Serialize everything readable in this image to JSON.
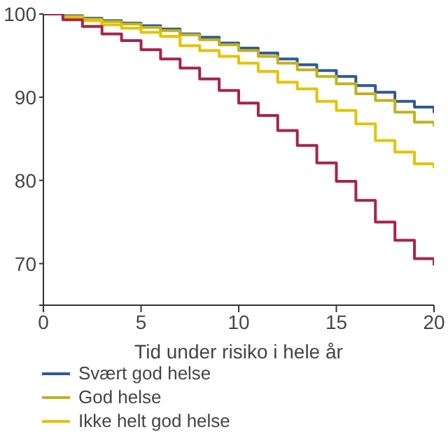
{
  "chart_data": {
    "type": "step",
    "xlabel": "Tid under risiko i hele år",
    "x": [
      0,
      1,
      2,
      3,
      4,
      5,
      6,
      7,
      8,
      9,
      10,
      11,
      12,
      13,
      14,
      15,
      16,
      17,
      18,
      19,
      20
    ],
    "series": [
      {
        "name": "Svært god helse",
        "color": "#2e5a94",
        "values": [
          100,
          99.8,
          99.5,
          99.2,
          98.9,
          98.6,
          98.2,
          97.6,
          97.2,
          96.5,
          95.9,
          95.3,
          94.6,
          93.9,
          93.2,
          92.5,
          91.4,
          90.6,
          89.5,
          88.8,
          88.1
        ]
      },
      {
        "name": "God helse",
        "color": "#c2b11e",
        "values": [
          100,
          99.7,
          99.4,
          99.1,
          98.8,
          98.4,
          98.0,
          97.5,
          96.9,
          96.3,
          95.6,
          94.9,
          94.1,
          93.3,
          92.5,
          91.6,
          90.4,
          89.6,
          88.2,
          87.0,
          86.5
        ]
      },
      {
        "name": "Ikke helt god helse",
        "color": "#e6c300",
        "values": [
          100,
          99.6,
          99.2,
          98.7,
          98.3,
          97.8,
          97.3,
          96.2,
          95.6,
          94.9,
          94.1,
          93.1,
          91.8,
          91.0,
          89.5,
          88.4,
          86.8,
          84.8,
          83.4,
          82.0,
          81.5
        ]
      },
      {
        "color": "#a8234a",
        "values": [
          100,
          99.3,
          98.5,
          97.6,
          96.8,
          95.7,
          94.6,
          93.5,
          92.2,
          90.8,
          89.3,
          87.8,
          86.0,
          84.2,
          82.1,
          79.9,
          77.6,
          75.0,
          72.8,
          70.6,
          69.8
        ]
      }
    ],
    "xlim": [
      0,
      20
    ],
    "xticks": [
      0,
      5,
      10,
      15,
      20
    ],
    "ylim": [
      65,
      100
    ],
    "yticks": [
      {
        "value": 65,
        "label": null
      },
      70,
      80,
      90,
      100
    ],
    "grid": false,
    "legend": "bottom",
    "marker": "none",
    "line_style": "solid"
  }
}
